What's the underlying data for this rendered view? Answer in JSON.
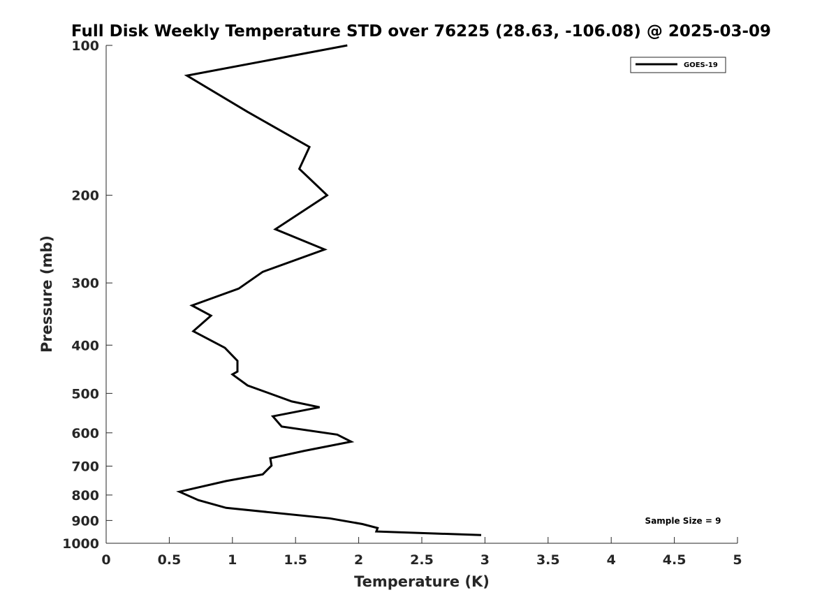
{
  "chart_data": {
    "type": "line",
    "title": "Full Disk Weekly Temperature STD over 76225 (28.63, -106.08) @ 2025-03-09",
    "xlabel": "Temperature (K)",
    "ylabel": "Pressure (mb)",
    "xlim": [
      0,
      5
    ],
    "ylim": [
      100,
      1000
    ],
    "yscale": "log",
    "y_reversed": true,
    "grid": false,
    "legend_position": "top-right",
    "x_ticks": [
      0,
      0.5,
      1,
      1.5,
      2,
      2.5,
      3,
      3.5,
      4,
      4.5,
      5
    ],
    "x_tick_labels": [
      "0",
      "0.5",
      "1",
      "1.5",
      "2",
      "2.5",
      "3",
      "3.5",
      "4",
      "4.5",
      "5"
    ],
    "y_ticks": [
      100,
      200,
      300,
      400,
      500,
      600,
      700,
      800,
      900,
      1000
    ],
    "y_tick_labels": [
      "100",
      "200",
      "300",
      "400",
      "500",
      "600",
      "700",
      "800",
      "900",
      "1000"
    ],
    "series": [
      {
        "name": "GOES-19",
        "color": "#000000",
        "x": [
          1.91,
          0.64,
          1.12,
          1.61,
          1.53,
          1.75,
          1.34,
          1.73,
          1.24,
          1.05,
          0.68,
          0.83,
          0.69,
          0.94,
          1.04,
          1.04,
          1.0,
          1.12,
          1.47,
          1.69,
          1.32,
          1.39,
          1.83,
          1.94,
          1.57,
          1.3,
          1.31,
          1.24,
          0.95,
          0.58,
          0.73,
          0.95,
          1.77,
          2.03,
          2.15,
          2.14,
          2.97
        ],
        "y": [
          100,
          115,
          136,
          160,
          177,
          200,
          234,
          257,
          285,
          308,
          333,
          349,
          375,
          405,
          430,
          452,
          458,
          482,
          519,
          533,
          556,
          583,
          605,
          625,
          652,
          675,
          698,
          727,
          750,
          788,
          819,
          849,
          891,
          915,
          932,
          947,
          963
        ]
      }
    ],
    "annotations": [
      "Sample Size = 9"
    ]
  }
}
